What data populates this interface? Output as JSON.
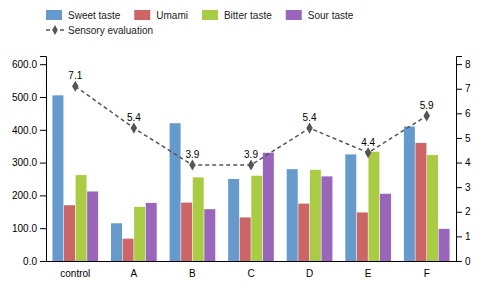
{
  "chart_data": {
    "type": "bar",
    "categories": [
      "control",
      "A",
      "B",
      "C",
      "D",
      "E",
      "F"
    ],
    "series": [
      {
        "name": "Sweet taste",
        "color": "#6699CC",
        "values": [
          505,
          115,
          420,
          250,
          280,
          325,
          410
        ]
      },
      {
        "name": "Umami",
        "color": "#CC6666",
        "values": [
          170,
          68,
          178,
          133,
          175,
          148,
          360
        ]
      },
      {
        "name": "Bitter taste",
        "color": "#AACC44",
        "values": [
          262,
          165,
          255,
          260,
          278,
          333,
          323
        ]
      },
      {
        "name": "Sour taste",
        "color": "#9966BB",
        "values": [
          212,
          177,
          158,
          330,
          258,
          205,
          98
        ]
      },
      {
        "name": "Sensory evaluation",
        "type": "line",
        "axis": "y2",
        "color": "#555555",
        "line_style": "dashed",
        "marker": "diamond",
        "data_labels": true,
        "values": [
          7.1,
          5.4,
          3.9,
          3.9,
          5.4,
          4.4,
          5.9
        ]
      }
    ],
    "ylim": [
      0,
      625
    ],
    "yticks": [
      {
        "value": 0,
        "label": "0.0"
      },
      {
        "value": 100,
        "label": "100.0"
      },
      {
        "value": 200,
        "label": "200.0"
      },
      {
        "value": 300,
        "label": "300.0"
      },
      {
        "value": 400,
        "label": "400.0"
      },
      {
        "value": 500,
        "label": "500.0"
      },
      {
        "value": 600,
        "label": "600.0"
      }
    ],
    "y2lim": [
      0,
      8.33
    ],
    "y2ticks": [
      0,
      1,
      2,
      3,
      4,
      5,
      6,
      7,
      8
    ],
    "legend": "top",
    "grid": false
  }
}
